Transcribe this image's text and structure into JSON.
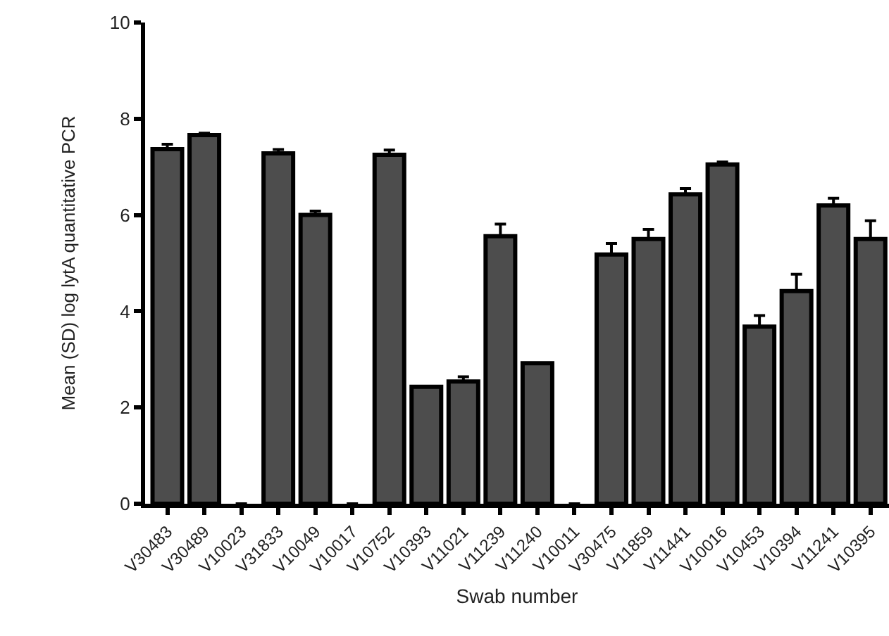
{
  "chart_data": {
    "type": "bar",
    "xlabel": "Swab number",
    "ylabel": "Mean (SD) log lytA quantitative PCR",
    "categories": [
      "V30483",
      "V30489",
      "V10023",
      "V31833",
      "V10049",
      "V10017",
      "V10752",
      "V10393",
      "V11021",
      "V11239",
      "V11240",
      "V10011",
      "V30475",
      "V11859",
      "V11441",
      "V10016",
      "V10453",
      "V10394",
      "V11241",
      "V10395"
    ],
    "values": [
      7.37,
      7.66,
      0,
      7.28,
      6.0,
      0,
      7.25,
      2.43,
      2.54,
      5.56,
      2.92,
      0,
      5.18,
      5.5,
      6.43,
      7.05,
      3.68,
      4.42,
      6.2,
      5.5
    ],
    "errors": [
      [
        7.37,
        7.47
      ],
      [
        7.66,
        7.7
      ],
      null,
      [
        7.28,
        7.36
      ],
      [
        6.0,
        6.08
      ],
      null,
      [
        7.25,
        7.35
      ],
      null,
      [
        2.54,
        2.64
      ],
      [
        5.56,
        5.81
      ],
      null,
      null,
      [
        5.18,
        5.41
      ],
      [
        5.5,
        5.7
      ],
      [
        6.43,
        6.55
      ],
      [
        7.05,
        7.1
      ],
      [
        3.68,
        3.91
      ],
      [
        4.42,
        4.77
      ],
      [
        6.2,
        6.35
      ],
      [
        5.5,
        5.88
      ]
    ],
    "color": "#4d4d4d",
    "ylim": [
      0,
      10
    ],
    "yticks": [
      0,
      2,
      4,
      6,
      8,
      10
    ],
    "grid": false
  }
}
